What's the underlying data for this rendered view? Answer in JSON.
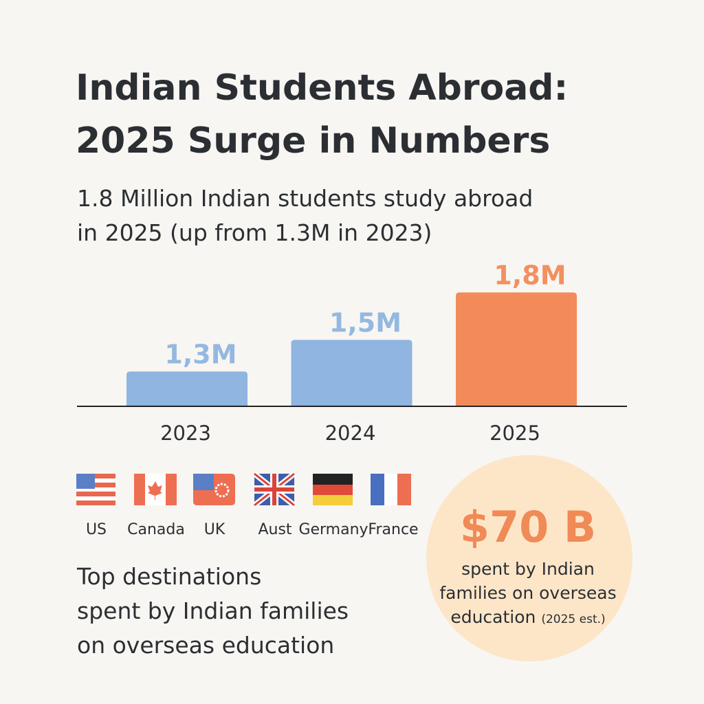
{
  "chart_data": {
    "type": "bar",
    "title": [
      "Indian Students Abroad:",
      "2025 Surge in Numbers"
    ],
    "subtitle": [
      "1.8 Million Indian students study abroad",
      "in 2025 (up from 1.3M in 2023)"
    ],
    "categories": [
      "2023",
      "2024",
      "2025"
    ],
    "values": [
      1.3,
      1.5,
      1.8
    ],
    "value_labels": [
      "1,3M",
      "1,5M",
      "1,8M"
    ],
    "colors": [
      "#8fb5e0",
      "#8fb5e0",
      "#f28b59"
    ],
    "ylim": [
      1.08,
      1.88
    ]
  },
  "destinations": {
    "countries": [
      "US",
      "Canada",
      "UK",
      "Aust",
      "Germany",
      "France"
    ],
    "caption": [
      "Top destinations",
      "spent by Indian families",
      "on overseas education"
    ]
  },
  "stat": {
    "value": "$70 B",
    "lines": [
      "spent by Indian",
      "families on overseas",
      "education"
    ],
    "note": "(2025 est.)"
  }
}
